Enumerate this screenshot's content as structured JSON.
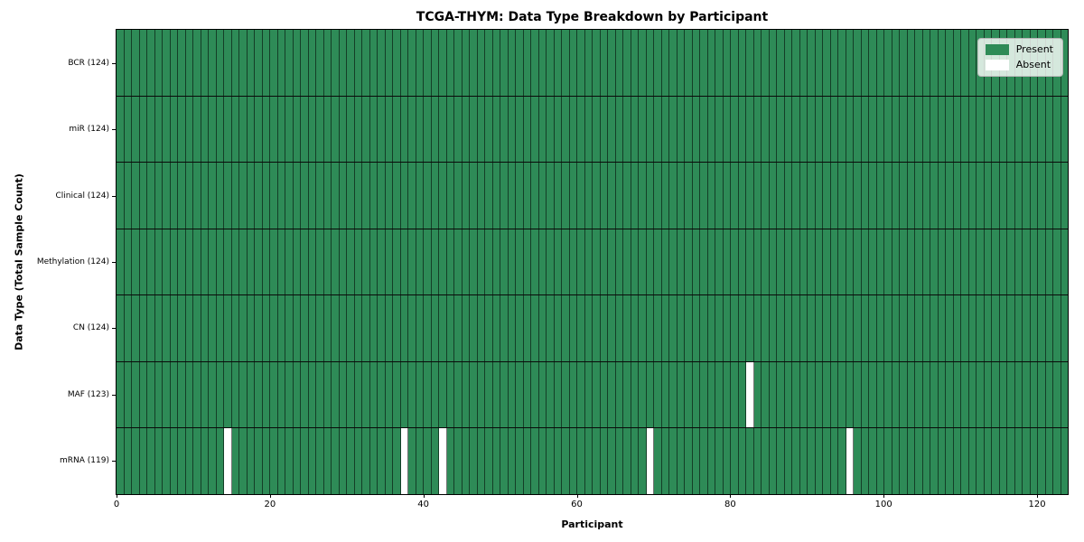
{
  "chart_data": {
    "type": "heatmap",
    "title": "TCGA-THYM: Data Type Breakdown by Participant",
    "xlabel": "Participant",
    "ylabel": "Data Type (Total Sample Count)",
    "n_participants": 124,
    "xlim": [
      0,
      124
    ],
    "x_ticks": [
      0,
      20,
      40,
      60,
      80,
      100,
      120
    ],
    "grid": false,
    "legend_position": "upper right",
    "legend": [
      {
        "label": "Present",
        "color": "#2E8B57"
      },
      {
        "label": "Absent",
        "color": "#FFFFFF"
      }
    ],
    "colors": {
      "present": "#2E8B57",
      "absent": "#FFFFFF",
      "cell_border": "rgba(0,0,0,0.55)",
      "row_divider": "#0a0a0a",
      "frame": "#000000"
    },
    "rows": [
      {
        "label": "BCR (124)",
        "data_type": "BCR",
        "present_count": 124,
        "absent_participants": []
      },
      {
        "label": "miR (124)",
        "data_type": "miR",
        "present_count": 124,
        "absent_participants": []
      },
      {
        "label": "Clinical (124)",
        "data_type": "Clinical",
        "present_count": 124,
        "absent_participants": []
      },
      {
        "label": "Methylation (124)",
        "data_type": "Methylation",
        "present_count": 124,
        "absent_participants": []
      },
      {
        "label": "CN (124)",
        "data_type": "CN",
        "present_count": 124,
        "absent_participants": []
      },
      {
        "label": "MAF (123)",
        "data_type": "MAF",
        "present_count": 123,
        "absent_participants": [
          82
        ]
      },
      {
        "label": "mRNA (119)",
        "data_type": "mRNA",
        "present_count": 119,
        "absent_participants": [
          14,
          37,
          42,
          69,
          95
        ]
      }
    ]
  }
}
